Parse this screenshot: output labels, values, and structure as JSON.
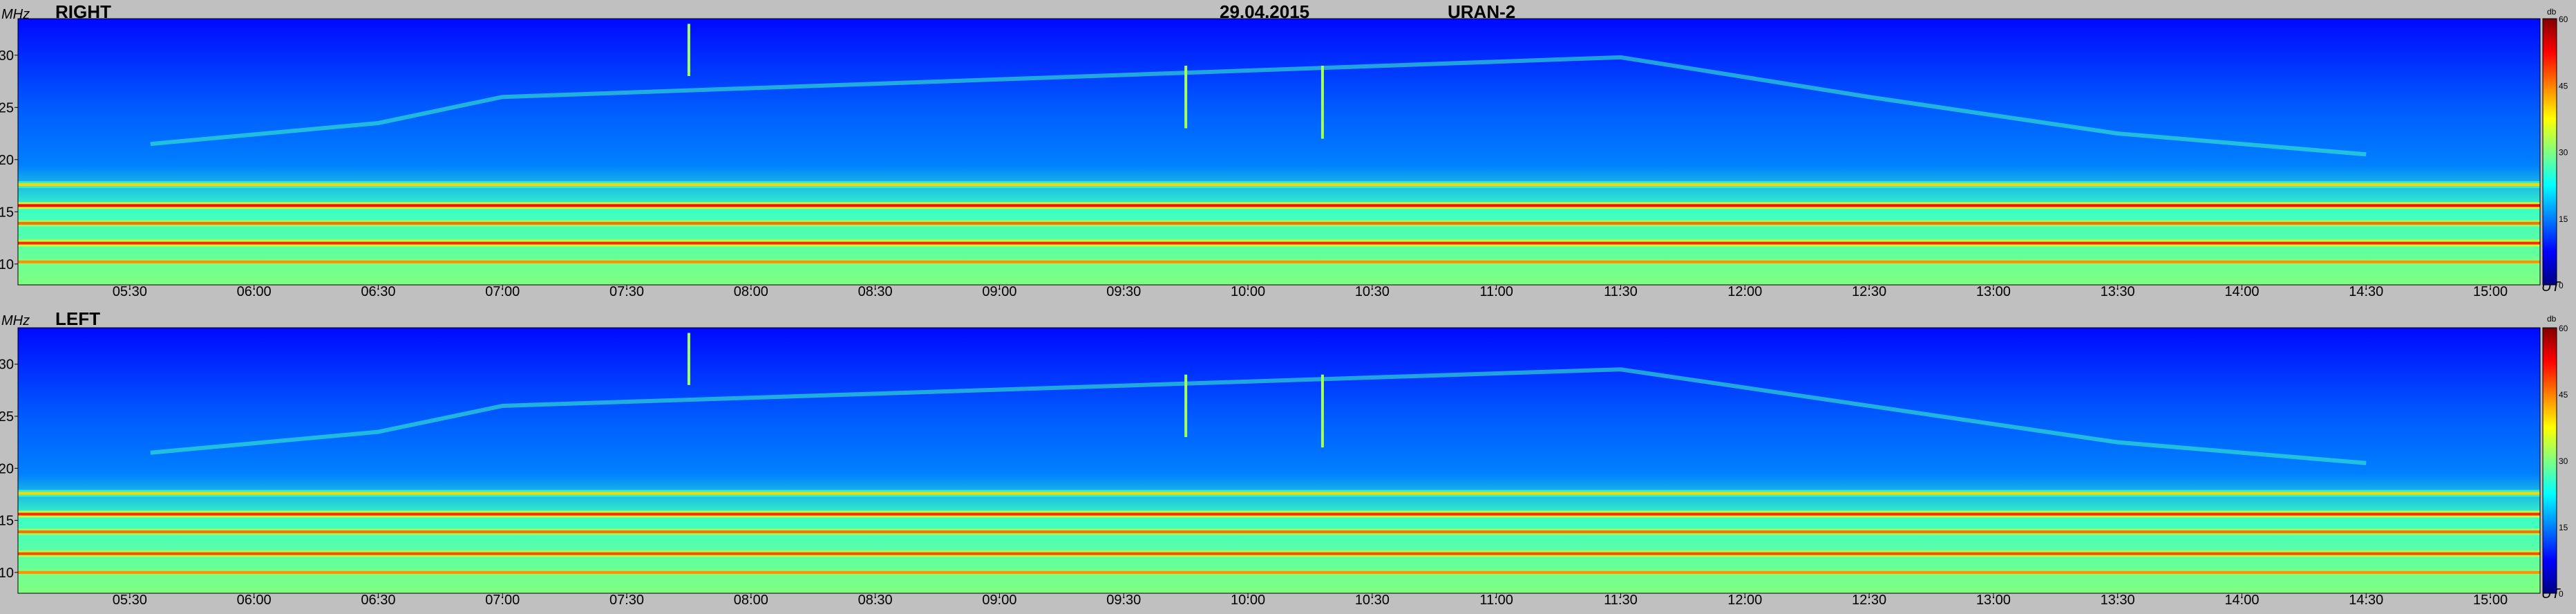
{
  "header": {
    "date": "29.04.2015",
    "instrument": "URAN-2"
  },
  "chart_data": [
    {
      "type": "heatmap",
      "title": "RIGHT",
      "ylabel": "MHz",
      "xlabel": "UT",
      "colorbar_label": "db",
      "colorbar_ticks": [
        "60",
        "45",
        "30",
        "15",
        "0"
      ],
      "color_range_db": [
        0,
        60
      ],
      "y_ticks": [
        "30",
        "25",
        "20",
        "15",
        "10"
      ],
      "y_tick_values": [
        30,
        25,
        20,
        15,
        10
      ],
      "ylim": [
        8,
        33.5
      ],
      "x_ticks": [
        "05:30",
        "06:00",
        "06:30",
        "07:00",
        "07:30",
        "08:00",
        "08:30",
        "09:00",
        "09:30",
        "10:00",
        "10:30",
        "11:00",
        "11:30",
        "12:00",
        "12:30",
        "13:00",
        "13:30",
        "14:00",
        "14:30",
        "15:00"
      ],
      "xlim": [
        "05:03",
        "15:12"
      ],
      "colormap": [
        "#000080",
        "#0000ff",
        "#0080ff",
        "#00ffff",
        "#80ff80",
        "#ffff00",
        "#ff8000",
        "#ff0000",
        "#800000"
      ],
      "background_db": 12,
      "bands_mhz": [
        {
          "f": 17.6,
          "db": 40
        },
        {
          "f": 15.6,
          "db": 52
        },
        {
          "f": 13.9,
          "db": 46
        },
        {
          "f": 12.0,
          "db": 50
        },
        {
          "f": 10.2,
          "db": 44
        }
      ],
      "drift_arc": [
        {
          "t": "05:35",
          "f": 21.5
        },
        {
          "t": "06:30",
          "f": 23.5
        },
        {
          "t": "07:00",
          "f": 26.0
        },
        {
          "t": "11:30",
          "f": 29.8
        },
        {
          "t": "12:30",
          "f": 26.0
        },
        {
          "t": "13:30",
          "f": 22.5
        },
        {
          "t": "14:30",
          "f": 20.5
        }
      ],
      "bursts": [
        {
          "t": "07:45",
          "f_from": 28.0,
          "f_to": 33.0
        },
        {
          "t": "09:45",
          "f_from": 23.0,
          "f_to": 29.0
        },
        {
          "t": "10:18",
          "f_from": 22.0,
          "f_to": 29.0
        }
      ]
    },
    {
      "type": "heatmap",
      "title": "LEFT",
      "ylabel": "MHz",
      "xlabel": "UT",
      "colorbar_label": "db",
      "colorbar_ticks": [
        "60",
        "45",
        "30",
        "15",
        "0"
      ],
      "color_range_db": [
        0,
        60
      ],
      "y_ticks": [
        "30",
        "25",
        "20",
        "15",
        "10"
      ],
      "y_tick_values": [
        30,
        25,
        20,
        15,
        10
      ],
      "ylim": [
        8,
        33.5
      ],
      "x_ticks": [
        "05:30",
        "06:00",
        "06:30",
        "07:00",
        "07:30",
        "08:00",
        "08:30",
        "09:00",
        "09:30",
        "10:00",
        "10:30",
        "11:00",
        "11:30",
        "12:00",
        "12:30",
        "13:00",
        "13:30",
        "14:00",
        "14:30",
        "15:00"
      ],
      "xlim": [
        "05:03",
        "15:12"
      ],
      "colormap": [
        "#000080",
        "#0000ff",
        "#0080ff",
        "#00ffff",
        "#80ff80",
        "#ffff00",
        "#ff8000",
        "#ff0000",
        "#800000"
      ],
      "background_db": 12,
      "bands_mhz": [
        {
          "f": 17.6,
          "db": 40
        },
        {
          "f": 15.6,
          "db": 50
        },
        {
          "f": 13.9,
          "db": 46
        },
        {
          "f": 11.8,
          "db": 48
        },
        {
          "f": 10.0,
          "db": 44
        }
      ],
      "drift_arc": [
        {
          "t": "05:35",
          "f": 21.5
        },
        {
          "t": "06:30",
          "f": 23.5
        },
        {
          "t": "07:00",
          "f": 26.0
        },
        {
          "t": "11:30",
          "f": 29.5
        },
        {
          "t": "12:30",
          "f": 26.0
        },
        {
          "t": "13:30",
          "f": 22.5
        },
        {
          "t": "14:30",
          "f": 20.5
        }
      ],
      "bursts": [
        {
          "t": "07:45",
          "f_from": 28.0,
          "f_to": 33.0
        },
        {
          "t": "09:45",
          "f_from": 23.0,
          "f_to": 29.0
        },
        {
          "t": "10:18",
          "f_from": 22.0,
          "f_to": 29.0
        }
      ]
    }
  ]
}
